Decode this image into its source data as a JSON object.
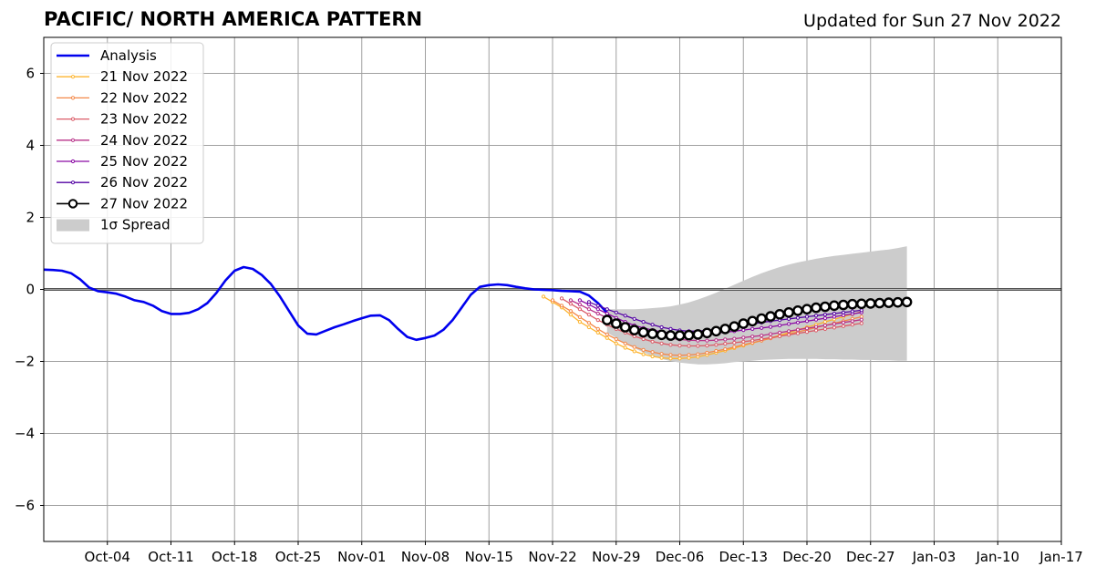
{
  "header": {
    "title": "PACIFIC/ NORTH AMERICA PATTERN",
    "updated": "Updated for Sun 27 Nov 2022"
  },
  "chart_data": {
    "type": "line",
    "x_range": [
      "2022-09-27",
      "2023-01-17"
    ],
    "ylim": [
      -7,
      7
    ],
    "yticks": [
      -6,
      -4,
      -2,
      0,
      2,
      4,
      6
    ],
    "ytick_labels": [
      "−6",
      "−4",
      "−2",
      "0",
      "2",
      "4",
      "6"
    ],
    "xticks": [
      {
        "date": "2022-10-04",
        "label": "Oct-04"
      },
      {
        "date": "2022-10-11",
        "label": "Oct-11"
      },
      {
        "date": "2022-10-18",
        "label": "Oct-18"
      },
      {
        "date": "2022-10-25",
        "label": "Oct-25"
      },
      {
        "date": "2022-11-01",
        "label": "Nov-01"
      },
      {
        "date": "2022-11-08",
        "label": "Nov-08"
      },
      {
        "date": "2022-11-15",
        "label": "Nov-15"
      },
      {
        "date": "2022-11-22",
        "label": "Nov-22"
      },
      {
        "date": "2022-11-29",
        "label": "Nov-29"
      },
      {
        "date": "2022-12-06",
        "label": "Dec-06"
      },
      {
        "date": "2022-12-13",
        "label": "Dec-13"
      },
      {
        "date": "2022-12-20",
        "label": "Dec-20"
      },
      {
        "date": "2022-12-27",
        "label": "Dec-27"
      },
      {
        "date": "2023-01-03",
        "label": "Jan-03"
      },
      {
        "date": "2023-01-10",
        "label": "Jan-10"
      },
      {
        "date": "2023-01-17",
        "label": "Jan-17"
      }
    ],
    "grid": true,
    "legend_position": "top-left",
    "analysis": {
      "name": "Analysis",
      "color": "#0000ee",
      "start": "2022-09-27",
      "values": [
        0.55,
        0.54,
        0.52,
        0.45,
        0.28,
        0.05,
        -0.05,
        -0.08,
        -0.12,
        -0.2,
        -0.3,
        -0.35,
        -0.45,
        -0.6,
        -0.68,
        -0.68,
        -0.65,
        -0.55,
        -0.38,
        -0.1,
        0.25,
        0.52,
        0.62,
        0.57,
        0.4,
        0.15,
        -0.2,
        -0.6,
        -1.0,
        -1.23,
        -1.25,
        -1.15,
        -1.05,
        -0.97,
        -0.88,
        -0.8,
        -0.73,
        -0.72,
        -0.85,
        -1.1,
        -1.32,
        -1.4,
        -1.35,
        -1.28,
        -1.12,
        -0.85,
        -0.5,
        -0.15,
        0.07,
        0.12,
        0.14,
        0.12,
        0.07,
        0.03,
        0.0,
        -0.01,
        -0.02,
        -0.04,
        -0.05,
        -0.06,
        -0.17,
        -0.38,
        -0.65
      ]
    },
    "forecasts": [
      {
        "name": "21 Nov 2022",
        "color": "#fdb42f",
        "start": "2022-11-21",
        "values": [
          -0.2,
          -0.35,
          -0.5,
          -0.7,
          -0.9,
          -1.05,
          -1.2,
          -1.35,
          -1.5,
          -1.62,
          -1.72,
          -1.8,
          -1.86,
          -1.9,
          -1.92,
          -1.92,
          -1.9,
          -1.87,
          -1.82,
          -1.76,
          -1.7,
          -1.63,
          -1.56,
          -1.49,
          -1.42,
          -1.35,
          -1.27,
          -1.2,
          -1.12,
          -1.05,
          -0.98,
          -0.9,
          -0.83,
          -0.76,
          -0.69,
          -0.62
        ]
      },
      {
        "name": "22 Nov 2022",
        "color": "#f48849",
        "start": "2022-11-22",
        "values": [
          -0.3,
          -0.45,
          -0.6,
          -0.77,
          -0.93,
          -1.1,
          -1.25,
          -1.38,
          -1.5,
          -1.6,
          -1.68,
          -1.74,
          -1.79,
          -1.82,
          -1.83,
          -1.82,
          -1.8,
          -1.76,
          -1.71,
          -1.66,
          -1.6,
          -1.54,
          -1.48,
          -1.42,
          -1.36,
          -1.3,
          -1.24,
          -1.18,
          -1.12,
          -1.06,
          -1.0,
          -0.94,
          -0.88,
          -0.82,
          -0.76
        ]
      },
      {
        "name": "23 Nov 2022",
        "color": "#db5c68",
        "start": "2022-11-23",
        "values": [
          -0.25,
          -0.4,
          -0.55,
          -0.7,
          -0.85,
          -0.98,
          -1.1,
          -1.2,
          -1.3,
          -1.38,
          -1.45,
          -1.5,
          -1.54,
          -1.56,
          -1.57,
          -1.57,
          -1.56,
          -1.54,
          -1.51,
          -1.48,
          -1.45,
          -1.42,
          -1.38,
          -1.34,
          -1.3,
          -1.26,
          -1.22,
          -1.18,
          -1.14,
          -1.1,
          -1.06,
          -1.02,
          -0.98,
          -0.94
        ]
      },
      {
        "name": "24 Nov 2022",
        "color": "#b83289",
        "start": "2022-11-24",
        "values": [
          -0.3,
          -0.42,
          -0.55,
          -0.67,
          -0.79,
          -0.9,
          -1.0,
          -1.1,
          -1.18,
          -1.25,
          -1.31,
          -1.36,
          -1.39,
          -1.41,
          -1.42,
          -1.42,
          -1.41,
          -1.39,
          -1.37,
          -1.34,
          -1.31,
          -1.28,
          -1.24,
          -1.2,
          -1.16,
          -1.12,
          -1.08,
          -1.04,
          -1.0,
          -0.96,
          -0.92,
          -0.88,
          -0.84
        ]
      },
      {
        "name": "25 Nov 2022",
        "color": "#8b0aa5",
        "start": "2022-11-25",
        "values": [
          -0.3,
          -0.42,
          -0.55,
          -0.67,
          -0.79,
          -0.9,
          -1.0,
          -1.07,
          -1.13,
          -1.18,
          -1.21,
          -1.23,
          -1.24,
          -1.24,
          -1.23,
          -1.21,
          -1.19,
          -1.16,
          -1.13,
          -1.1,
          -1.07,
          -1.04,
          -1.0,
          -0.96,
          -0.92,
          -0.88,
          -0.84,
          -0.8,
          -0.76,
          -0.72,
          -0.68,
          -0.64
        ]
      },
      {
        "name": "26 Nov 2022",
        "color": "#5302a3",
        "start": "2022-11-26",
        "values": [
          -0.35,
          -0.45,
          -0.55,
          -0.64,
          -0.73,
          -0.82,
          -0.9,
          -0.98,
          -1.05,
          -1.1,
          -1.14,
          -1.16,
          -1.16,
          -1.14,
          -1.11,
          -1.08,
          -1.04,
          -1.0,
          -0.96,
          -0.92,
          -0.88,
          -0.85,
          -0.82,
          -0.79,
          -0.76,
          -0.73,
          -0.7,
          -0.67,
          -0.64,
          -0.61,
          -0.58
        ]
      },
      {
        "name": "27 Nov 2022",
        "color": "#000000",
        "start": "2022-11-28",
        "values": [
          -0.85,
          -0.95,
          -1.05,
          -1.13,
          -1.19,
          -1.23,
          -1.26,
          -1.28,
          -1.28,
          -1.27,
          -1.25,
          -1.21,
          -1.16,
          -1.1,
          -1.03,
          -0.95,
          -0.88,
          -0.81,
          -0.75,
          -0.69,
          -0.64,
          -0.59,
          -0.55,
          -0.51,
          -0.48,
          -0.45,
          -0.43,
          -0.41,
          -0.4,
          -0.39,
          -0.38,
          -0.37,
          -0.36,
          -0.35
        ]
      }
    ],
    "spread": {
      "name": "1σ Spread",
      "color": "#cccccc",
      "start": "2022-11-28",
      "upper": [
        -0.55,
        -0.55,
        -0.55,
        -0.55,
        -0.54,
        -0.52,
        -0.5,
        -0.47,
        -0.42,
        -0.36,
        -0.28,
        -0.19,
        -0.09,
        0.02,
        0.13,
        0.24,
        0.35,
        0.45,
        0.54,
        0.62,
        0.69,
        0.75,
        0.8,
        0.85,
        0.89,
        0.93,
        0.96,
        0.99,
        1.02,
        1.05,
        1.08,
        1.11,
        1.15,
        1.2
      ],
      "lower": [
        -1.2,
        -1.35,
        -1.5,
        -1.63,
        -1.75,
        -1.85,
        -1.93,
        -1.99,
        -2.03,
        -2.06,
        -2.08,
        -2.08,
        -2.07,
        -2.05,
        -2.02,
        -2.0,
        -1.98,
        -1.96,
        -1.95,
        -1.94,
        -1.93,
        -1.93,
        -1.93,
        -1.93,
        -1.94,
        -1.94,
        -1.95,
        -1.95,
        -1.96,
        -1.96,
        -1.97,
        -1.97,
        -1.98,
        -1.98
      ]
    },
    "legend": [
      {
        "label": "Analysis",
        "style": "analysis"
      },
      {
        "label": "21 Nov 2022",
        "style": "f0"
      },
      {
        "label": "22 Nov 2022",
        "style": "f1"
      },
      {
        "label": "23 Nov 2022",
        "style": "f2"
      },
      {
        "label": "24 Nov 2022",
        "style": "f3"
      },
      {
        "label": "25 Nov 2022",
        "style": "f4"
      },
      {
        "label": "26 Nov 2022",
        "style": "f5"
      },
      {
        "label": "27 Nov 2022",
        "style": "f6"
      },
      {
        "label": "1σ Spread",
        "style": "spread"
      }
    ]
  }
}
